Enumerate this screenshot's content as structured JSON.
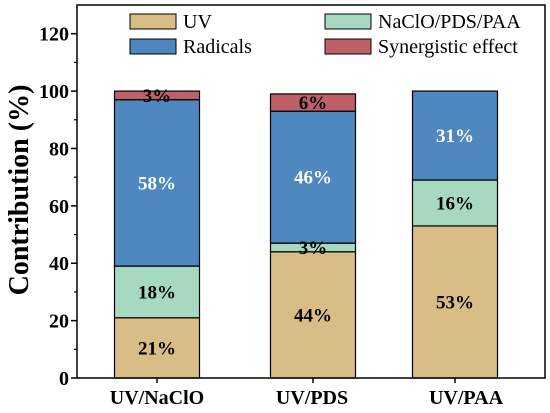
{
  "chart_data": {
    "type": "bar",
    "stacked": true,
    "categories": [
      "UV/NaClO",
      "UV/PDS",
      "UV/PAA"
    ],
    "series": [
      {
        "name": "UV",
        "values": [
          21,
          44,
          53
        ],
        "labels": [
          "21%",
          "44%",
          "53%"
        ],
        "color": "#D9BD87",
        "label_color": "#000000"
      },
      {
        "name": "NaClO/PDS/PAA",
        "values": [
          18,
          3,
          16
        ],
        "labels": [
          "18%",
          "3%",
          "16%"
        ],
        "color": "#A7D9C1",
        "label_color": "#000000"
      },
      {
        "name": "Radicals",
        "values": [
          58,
          46,
          31
        ],
        "labels": [
          "58%",
          "46%",
          "31%"
        ],
        "color": "#4E88BF",
        "label_color": "#FFFFFF"
      },
      {
        "name": "Synergistic effect",
        "values": [
          3,
          6,
          null
        ],
        "labels": [
          "3%",
          "6%",
          null
        ],
        "color": "#BF6068",
        "label_color": "#000000"
      }
    ],
    "ylabel": "Contribution (%)",
    "ylim": [
      0,
      130
    ],
    "yticks": [
      0,
      20,
      40,
      60,
      80,
      100,
      120
    ],
    "grid": false,
    "legend": "top"
  }
}
